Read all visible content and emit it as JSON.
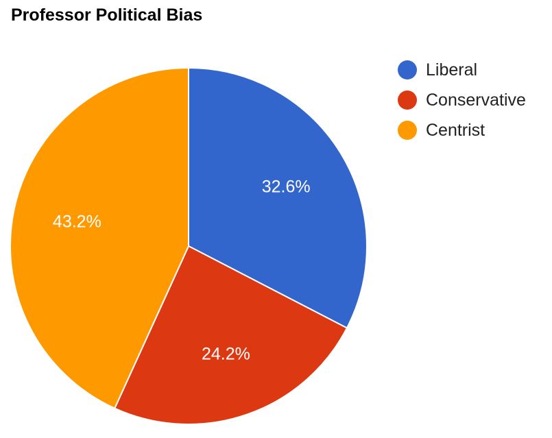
{
  "chart_data": {
    "type": "pie",
    "title": "Professor Political Bias",
    "legend_position": "right",
    "slices": [
      {
        "name": "Liberal",
        "value": 32.6,
        "label": "32.6%",
        "color": "#3366cc"
      },
      {
        "name": "Conservative",
        "value": 24.2,
        "label": "24.2%",
        "color": "#dc3912"
      },
      {
        "name": "Centrist",
        "value": 43.2,
        "label": "43.2%",
        "color": "#ff9900"
      }
    ]
  }
}
